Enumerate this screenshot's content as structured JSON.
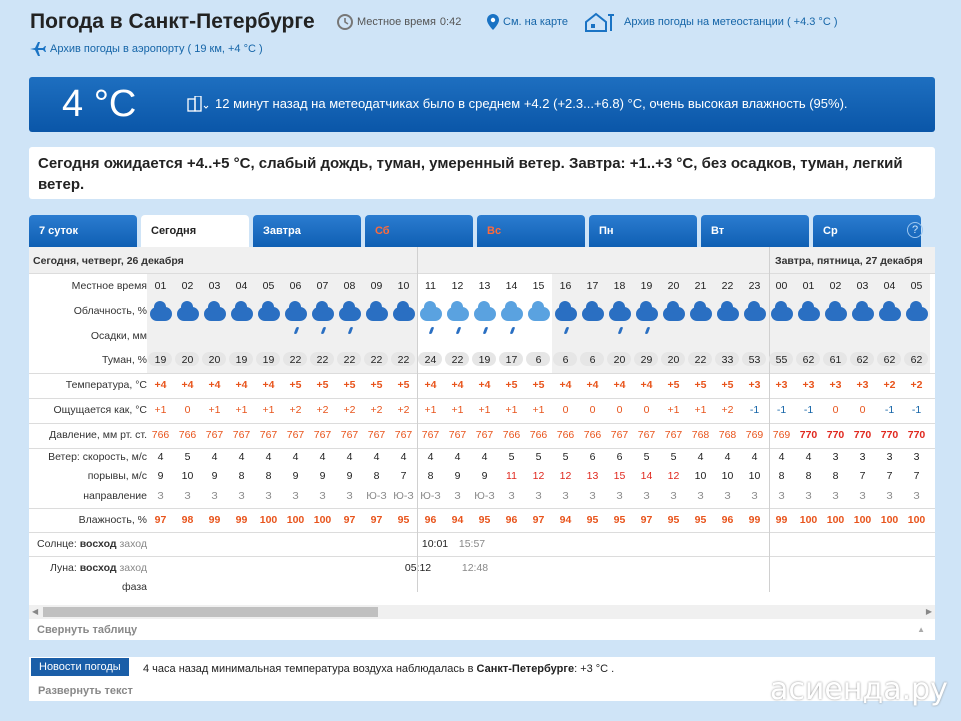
{
  "header": {
    "title": "Погода в Санкт-Петербурге",
    "local_time_label": "Местное время",
    "local_time": "0:42",
    "map_link": "См. на карте",
    "station_archive": "Архив погоды на метеостанции ( +4.3 °C )",
    "airport_archive": "Архив погоды в аэропорту ( 19 км, +4 °C )"
  },
  "current": {
    "temp": "4 °C",
    "summary": "12 минут назад на метеодатчиках было в среднем +4.2 (+2.3...+6.8) °С, очень высокая влажность (95%)."
  },
  "forecast_text": "Сегодня ожидается +4..+5 °C, слабый дождь, туман, умеренный ветер. Завтра: +1..+3 °C, без осадков, туман, легкий ветер.",
  "tabs": [
    {
      "label": "7 суток",
      "weekend": false
    },
    {
      "label": "Сегодня",
      "weekend": false
    },
    {
      "label": "Завтра",
      "weekend": false
    },
    {
      "label": "Сб",
      "weekend": true
    },
    {
      "label": "Вс",
      "weekend": true
    },
    {
      "label": "Пн",
      "weekend": false
    },
    {
      "label": "Вт",
      "weekend": false
    },
    {
      "label": "Ср",
      "weekend": false
    }
  ],
  "help": "?",
  "table": {
    "today_date": "Сегодня, четверг, 26 декабря",
    "tomorrow_date": "Завтра, пятница, 27 декабря",
    "labels": {
      "time": "Местное время",
      "cloud": "Облачность, %",
      "precip": "Осадки, мм",
      "fog": "Туман, %",
      "temp": "Температура, °C",
      "feels": "Ощущается как, °C",
      "pressure": "Давление, мм рт. ст.",
      "wind_speed": "Ветер: скорость, м/с",
      "gusts": "порывы, м/с",
      "direction": "направление",
      "humidity": "Влажность, %",
      "sun_prefix": "Солнце:",
      "sunrise": "восход",
      "sunset": "заход",
      "moon_prefix": "Луна:",
      "moonrise": "восход",
      "moonset": "заход",
      "phase": "фаза"
    },
    "hours": [
      "01",
      "02",
      "03",
      "04",
      "05",
      "06",
      "07",
      "08",
      "09",
      "10",
      "11",
      "12",
      "13",
      "14",
      "15",
      "16",
      "17",
      "18",
      "19",
      "20",
      "21",
      "22",
      "23",
      "00",
      "01",
      "02",
      "03",
      "04",
      "05"
    ],
    "fog": [
      "19",
      "20",
      "20",
      "19",
      "19",
      "22",
      "22",
      "22",
      "22",
      "22",
      "24",
      "22",
      "19",
      "17",
      "6",
      "6",
      "6",
      "20",
      "29",
      "20",
      "22",
      "33",
      "53",
      "55",
      "62",
      "61",
      "62",
      "62",
      "62"
    ],
    "temp": [
      "+4",
      "+4",
      "+4",
      "+4",
      "+4",
      "+5",
      "+5",
      "+5",
      "+5",
      "+5",
      "+4",
      "+4",
      "+4",
      "+5",
      "+5",
      "+4",
      "+4",
      "+4",
      "+4",
      "+5",
      "+5",
      "+5",
      "+3",
      "+3",
      "+3",
      "+3",
      "+3",
      "+2",
      "+2"
    ],
    "feels": [
      "+1",
      "0",
      "+1",
      "+1",
      "+1",
      "+2",
      "+2",
      "+2",
      "+2",
      "+2",
      "+1",
      "+1",
      "+1",
      "+1",
      "+1",
      "0",
      "0",
      "0",
      "0",
      "+1",
      "+1",
      "+2",
      "-1",
      "-1",
      "-1",
      "0",
      "0",
      "-1",
      "-1"
    ],
    "pressure": [
      "766",
      "766",
      "767",
      "767",
      "767",
      "767",
      "767",
      "767",
      "767",
      "767",
      "767",
      "767",
      "767",
      "766",
      "766",
      "766",
      "766",
      "767",
      "767",
      "767",
      "768",
      "768",
      "769",
      "769",
      "770",
      "770",
      "770",
      "770",
      "770"
    ],
    "wind": [
      "4",
      "5",
      "4",
      "4",
      "4",
      "4",
      "4",
      "4",
      "4",
      "4",
      "4",
      "4",
      "4",
      "5",
      "5",
      "5",
      "6",
      "6",
      "5",
      "5",
      "4",
      "4",
      "4",
      "4",
      "4",
      "3",
      "3",
      "3",
      "3"
    ],
    "gusts": [
      "9",
      "10",
      "9",
      "8",
      "8",
      "9",
      "9",
      "9",
      "8",
      "7",
      "8",
      "9",
      "9",
      "11",
      "12",
      "12",
      "13",
      "15",
      "14",
      "12",
      "10",
      "10",
      "10",
      "8",
      "8",
      "8",
      "7",
      "7",
      "7"
    ],
    "direction": [
      "З",
      "З",
      "З",
      "З",
      "З",
      "З",
      "З",
      "З",
      "Ю-З",
      "Ю-З",
      "Ю-З",
      "З",
      "Ю-З",
      "З",
      "З",
      "З",
      "З",
      "З",
      "З",
      "З",
      "З",
      "З",
      "З",
      "З",
      "З",
      "З",
      "З",
      "З",
      "З"
    ],
    "humidity": [
      "97",
      "98",
      "99",
      "99",
      "100",
      "100",
      "100",
      "97",
      "97",
      "95",
      "96",
      "94",
      "95",
      "96",
      "97",
      "94",
      "95",
      "95",
      "97",
      "95",
      "95",
      "96",
      "99",
      "99",
      "100",
      "100",
      "100",
      "100",
      "100"
    ],
    "sunrise": "10:01",
    "sunset": "15:57",
    "moonrise": "05:12",
    "moonset": "12:48",
    "collapse": "Свернуть таблицу"
  },
  "news": {
    "button": "Новости погоды",
    "text_a": "4 часа назад минимальная температура воздуха наблюдалась в ",
    "text_city": "Санкт-Петербурге",
    "text_b": ": +3 °C .",
    "expand": "Развернуть текст"
  },
  "watermark": "асиенда.ру"
}
